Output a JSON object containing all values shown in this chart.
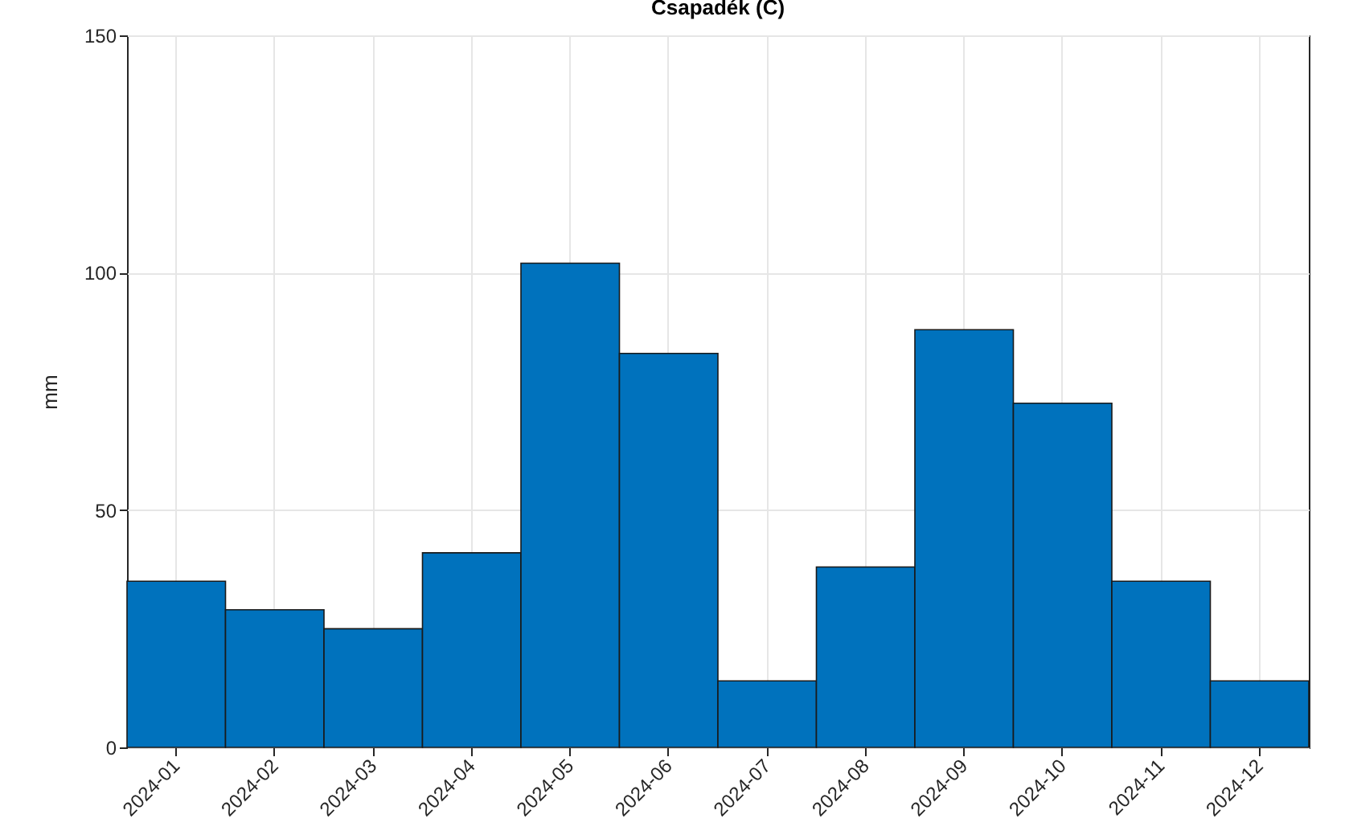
{
  "chart_data": {
    "type": "bar",
    "title": "Csapadék (C)",
    "ylabel": "mm",
    "categories": [
      "2024-01",
      "2024-02",
      "2024-03",
      "2024-04",
      "2024-05",
      "2024-06",
      "2024-07",
      "2024-08",
      "2024-09",
      "2024-10",
      "2024-11",
      "2024-12"
    ],
    "values": [
      35,
      29,
      25,
      41,
      102,
      83,
      14,
      38,
      88,
      72.5,
      35,
      14
    ],
    "color": "#0072bd",
    "ylim": [
      0,
      150
    ],
    "yticks": [
      0,
      50,
      100,
      150
    ],
    "grid": true
  }
}
